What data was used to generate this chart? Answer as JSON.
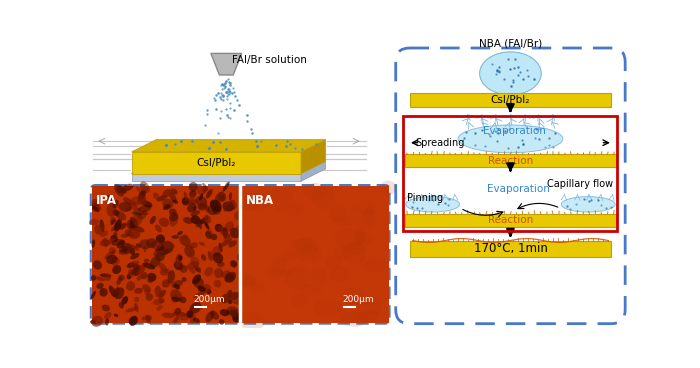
{
  "bg_color": "#ffffff",
  "left_panel": {
    "spray_label": "FAI/Br solution",
    "film_label": "CsI/PbI₂",
    "nozzle_color": "#b8b8b8",
    "nozzle_edge": "#888888",
    "film_yellow": "#e8c800",
    "film_blue": "#c0cce0",
    "scan_line_color": "#d0d0d0"
  },
  "microscopy": {
    "ipa_label": "IPA",
    "nba_label": "NBA",
    "scale_label": "200μm",
    "ipa_bg": "#bb3200",
    "nba_bg": "#c03800",
    "border_color": "#4878c8"
  },
  "right_panel": {
    "dashed_border_color": "#4878c8",
    "red_border_color": "#cc0000",
    "step0_drop_label": "NBA (FAI/Br)",
    "step0_film_label": "CsI/PbI₂",
    "evap1_label": "Evaporation",
    "spreading_label": "Spreading",
    "reaction1_label": "Reaction",
    "evap_text_color": "#3388cc",
    "capflow_label": "Capillary flow",
    "pinning_label": "Pinning",
    "evap2_label": "Evaporation",
    "reaction2_label": "Reaction",
    "final_label": "170°C, 1min",
    "film_yellow": "#e8c800",
    "film_yellow_edge": "#c0a000",
    "droplet_fill": "#bee8f8",
    "droplet_edge": "#80b8d8",
    "reaction_orange": "#cc5500"
  }
}
